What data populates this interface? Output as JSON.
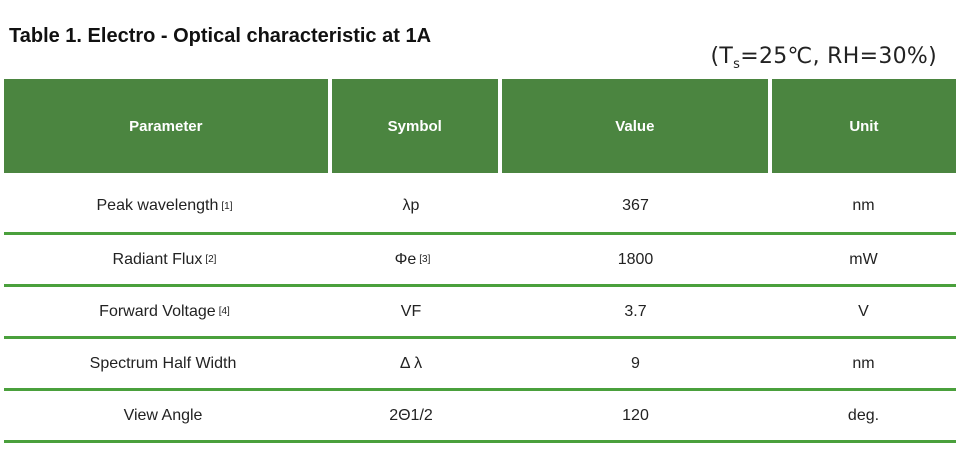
{
  "title": "Table 1. Electro - Optical characteristic at 1A",
  "conditions": {
    "open": "(T",
    "sub": "s",
    "rest": "=25℃, RH=30%)"
  },
  "table": {
    "headers": [
      "Parameter",
      "Symbol",
      "Value",
      "Unit"
    ],
    "rows": [
      {
        "parameter": "Peak wavelength",
        "parameter_note": "[1]",
        "symbol": "λp",
        "symbol_note": "",
        "value": "367",
        "unit": "nm"
      },
      {
        "parameter": "Radiant Flux",
        "parameter_note": "[2]",
        "symbol": "Φe",
        "symbol_note": "[3]",
        "value": "1800",
        "unit": "mW"
      },
      {
        "parameter": "Forward Voltage",
        "parameter_note": "[4]",
        "symbol": "VF",
        "symbol_note": "",
        "value": "3.7",
        "unit": "V"
      },
      {
        "parameter": "Spectrum Half Width",
        "parameter_note": "",
        "symbol": "Δ λ",
        "symbol_note": "",
        "value": "9",
        "unit": "nm"
      },
      {
        "parameter": "View Angle",
        "parameter_note": "",
        "symbol": "2Θ1/2",
        "symbol_note": "",
        "value": "120",
        "unit": "deg."
      }
    ]
  },
  "colors": {
    "header_bg": "#4b8540",
    "row_divider": "#4aa03c"
  }
}
